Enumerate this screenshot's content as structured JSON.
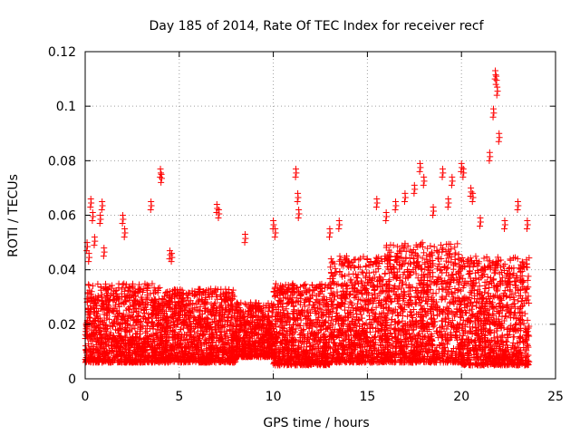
{
  "chart_data": {
    "type": "scatter",
    "title": "Day 185 of 2014, Rate Of TEC Index for receiver recf",
    "xlabel": "GPS time / hours",
    "ylabel": "ROTI / TECUs",
    "xlim": [
      0,
      25
    ],
    "ylim": [
      0,
      0.12
    ],
    "x_ticks": [
      0,
      5,
      10,
      15,
      20,
      25
    ],
    "x_tick_labels": [
      "0",
      "5",
      "10",
      "15",
      "20",
      "25"
    ],
    "y_ticks": [
      0,
      0.02,
      0.04,
      0.06,
      0.08,
      0.1,
      0.12
    ],
    "y_tick_labels": [
      "0",
      "0.02",
      "0.04",
      "0.06",
      "0.08",
      "0.1",
      "0.12"
    ],
    "grid": true,
    "marker": "plus",
    "color": "#ff0000",
    "series": [
      {
        "x": [
          0.1,
          0.2,
          0.3,
          0.4,
          0.5,
          0.8,
          0.9,
          1.0,
          2.0,
          2.1,
          3.5,
          4.0,
          4.05,
          4.5,
          4.6,
          7.0,
          7.1,
          8.5,
          10.0,
          10.1,
          11.2,
          11.3,
          11.35,
          13.0,
          13.5,
          15.5,
          16.0,
          16.5,
          17.0,
          17.5,
          17.8,
          18.0,
          18.5,
          19.0,
          19.3,
          19.5,
          20.0,
          20.1,
          20.5,
          20.6,
          21.0,
          21.5,
          21.7,
          21.8,
          21.85,
          21.9,
          22.0,
          22.3,
          23.0,
          23.5
        ],
        "y": [
          0.05,
          0.046,
          0.066,
          0.061,
          0.052,
          0.06,
          0.065,
          0.048,
          0.06,
          0.055,
          0.065,
          0.077,
          0.075,
          0.047,
          0.046,
          0.064,
          0.062,
          0.053,
          0.058,
          0.055,
          0.077,
          0.068,
          0.062,
          0.055,
          0.058,
          0.066,
          0.061,
          0.065,
          0.068,
          0.071,
          0.079,
          0.074,
          0.063,
          0.077,
          0.066,
          0.074,
          0.079,
          0.077,
          0.07,
          0.068,
          0.059,
          0.083,
          0.099,
          0.113,
          0.111,
          0.107,
          0.09,
          0.058,
          0.065,
          0.058
        ]
      }
    ],
    "dense_band": [
      {
        "hour_range": [
          0,
          4
        ],
        "low": 0.006,
        "high": 0.035
      },
      {
        "hour_range": [
          4,
          8
        ],
        "low": 0.006,
        "high": 0.033
      },
      {
        "hour_range": [
          8,
          10
        ],
        "low": 0.008,
        "high": 0.028
      },
      {
        "hour_range": [
          10,
          13
        ],
        "low": 0.005,
        "high": 0.035
      },
      {
        "hour_range": [
          13,
          16
        ],
        "low": 0.006,
        "high": 0.045
      },
      {
        "hour_range": [
          16,
          20
        ],
        "low": 0.006,
        "high": 0.05
      },
      {
        "hour_range": [
          20,
          23.6
        ],
        "low": 0.005,
        "high": 0.045
      }
    ]
  }
}
